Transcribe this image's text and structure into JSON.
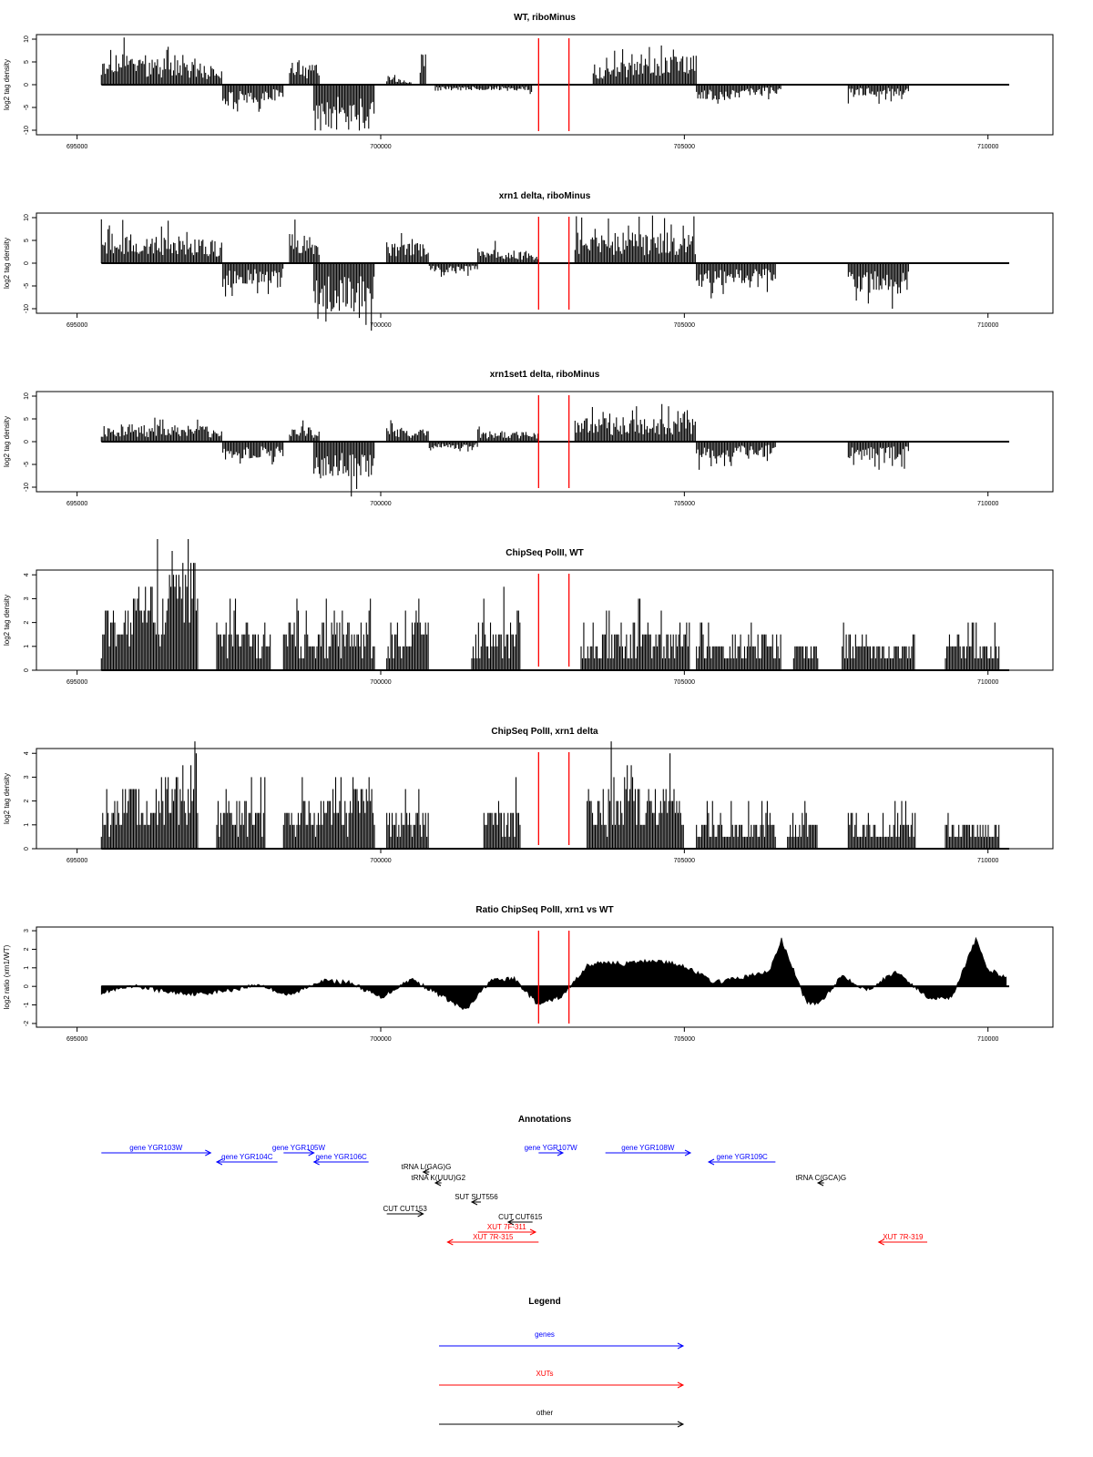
{
  "colors": {
    "bars": "#000000",
    "frame": "#000000",
    "marker": "#ff0000",
    "genes": "#0000ff",
    "xuts": "#ff0000",
    "other": "#000000"
  },
  "chart_data": [
    {
      "type": "bar",
      "title": "WT, riboMinus",
      "ylabel": "log2 tag density",
      "xlim": [
        695000,
        710400
      ],
      "ylim": [
        -11,
        11
      ],
      "yticks": [
        -10,
        -5,
        0,
        5,
        10
      ],
      "xticks": [
        695000,
        700000,
        705000,
        710000
      ],
      "xtick_labels": [
        "695000",
        "700000",
        "705000",
        "710000"
      ],
      "markers_x": [
        702600,
        703100
      ],
      "segments": [
        {
          "x": [
            695400,
            697400
          ],
          "y": [
            6,
            3
          ]
        },
        {
          "x": [
            697400,
            698400
          ],
          "y": [
            -3.5,
            -2.5
          ]
        },
        {
          "x": [
            698500,
            699000
          ],
          "y": [
            5,
            3
          ]
        },
        {
          "x": [
            698900,
            699900
          ],
          "y": [
            -7.5,
            -8
          ]
        },
        {
          "x": [
            700100,
            700500
          ],
          "y": [
            1.5,
            0.5
          ]
        },
        {
          "x": [
            700650,
            700750
          ],
          "y": [
            7,
            7
          ]
        },
        {
          "x": [
            700900,
            702500
          ],
          "y": [
            -1,
            -1
          ]
        },
        {
          "x": [
            703500,
            705200
          ],
          "y": [
            3.5,
            5
          ]
        },
        {
          "x": [
            705200,
            706600
          ],
          "y": [
            -3,
            -1.5
          ]
        },
        {
          "x": [
            707700,
            708700
          ],
          "y": [
            -2,
            -2
          ]
        }
      ]
    },
    {
      "type": "bar",
      "title": "xrn1 delta, riboMinus",
      "ylabel": "log2 tag density",
      "xlim": [
        695000,
        710400
      ],
      "ylim": [
        -11,
        11
      ],
      "yticks": [
        -10,
        -5,
        0,
        5,
        10
      ],
      "xticks": [
        695000,
        700000,
        705000,
        710000
      ],
      "xtick_labels": [
        "695000",
        "700000",
        "705000",
        "710000"
      ],
      "markers_x": [
        702600,
        703100
      ],
      "segments": [
        {
          "x": [
            695400,
            697400
          ],
          "y": [
            5,
            4
          ]
        },
        {
          "x": [
            697400,
            698400
          ],
          "y": [
            -4.5,
            -3
          ]
        },
        {
          "x": [
            698500,
            699000
          ],
          "y": [
            5,
            4
          ]
        },
        {
          "x": [
            698900,
            699900
          ],
          "y": [
            -8,
            -8
          ]
        },
        {
          "x": [
            700100,
            700800
          ],
          "y": [
            4,
            3
          ]
        },
        {
          "x": [
            700800,
            701600
          ],
          "y": [
            -1.5,
            -1.5
          ]
        },
        {
          "x": [
            701600,
            702600
          ],
          "y": [
            2.5,
            2
          ]
        },
        {
          "x": [
            703200,
            705200
          ],
          "y": [
            5,
            5
          ]
        },
        {
          "x": [
            705200,
            706500
          ],
          "y": [
            -4,
            -3
          ]
        },
        {
          "x": [
            707700,
            708700
          ],
          "y": [
            -5,
            -5
          ]
        }
      ]
    },
    {
      "type": "bar",
      "title": "xrn1set1 delta, riboMinus",
      "ylabel": "log2 tag density",
      "xlim": [
        695000,
        710400
      ],
      "ylim": [
        -11,
        11
      ],
      "yticks": [
        -10,
        -5,
        0,
        5,
        10
      ],
      "xticks": [
        695000,
        700000,
        705000,
        710000
      ],
      "xtick_labels": [
        "695000",
        "700000",
        "705000",
        "710000"
      ],
      "markers_x": [
        702600,
        703100
      ],
      "segments": [
        {
          "x": [
            695400,
            697400
          ],
          "y": [
            3,
            2.5
          ]
        },
        {
          "x": [
            697400,
            698400
          ],
          "y": [
            -3,
            -2.5
          ]
        },
        {
          "x": [
            698500,
            699000
          ],
          "y": [
            3,
            2
          ]
        },
        {
          "x": [
            698900,
            699900
          ],
          "y": [
            -6,
            -6
          ]
        },
        {
          "x": [
            700100,
            700800
          ],
          "y": [
            2.5,
            2
          ]
        },
        {
          "x": [
            700800,
            701600
          ],
          "y": [
            -1.5,
            -1
          ]
        },
        {
          "x": [
            701600,
            702600
          ],
          "y": [
            2,
            1.5
          ]
        },
        {
          "x": [
            703200,
            705200
          ],
          "y": [
            4,
            4
          ]
        },
        {
          "x": [
            705200,
            706500
          ],
          "y": [
            -3,
            -2
          ]
        },
        {
          "x": [
            707700,
            708700
          ],
          "y": [
            -3,
            -3
          ]
        }
      ]
    },
    {
      "type": "bar",
      "title": "ChipSeq PolII, WT",
      "ylabel": "log2 tag density",
      "xlim": [
        695000,
        710400
      ],
      "ylim": [
        0,
        4.2
      ],
      "yticks": [
        0,
        1,
        2,
        3,
        4
      ],
      "xticks": [
        695000,
        700000,
        705000,
        710000
      ],
      "xtick_labels": [
        "695000",
        "700000",
        "705000",
        "710000"
      ],
      "markers_x": [
        702600,
        703100
      ],
      "segments": [
        {
          "x": [
            695400,
            697000
          ],
          "y": [
            2,
            3.5
          ]
        },
        {
          "x": [
            697300,
            698200
          ],
          "y": [
            1.5,
            1.5
          ]
        },
        {
          "x": [
            698400,
            699900
          ],
          "y": [
            1.5,
            1.5
          ]
        },
        {
          "x": [
            700100,
            700800
          ],
          "y": [
            1.5,
            1.5
          ]
        },
        {
          "x": [
            701500,
            702300
          ],
          "y": [
            1.2,
            2
          ]
        },
        {
          "x": [
            703300,
            705100
          ],
          "y": [
            1.2,
            1.5
          ]
        },
        {
          "x": [
            705200,
            706600
          ],
          "y": [
            1,
            1
          ]
        },
        {
          "x": [
            706800,
            707200
          ],
          "y": [
            1,
            1
          ]
        },
        {
          "x": [
            707600,
            708800
          ],
          "y": [
            1,
            1
          ]
        },
        {
          "x": [
            709300,
            710200
          ],
          "y": [
            1,
            1
          ]
        }
      ]
    },
    {
      "type": "bar",
      "title": "ChipSeq PolII, xrn1 delta",
      "ylabel": "log2 tag density",
      "xlim": [
        695000,
        710400
      ],
      "ylim": [
        0,
        4.2
      ],
      "yticks": [
        0,
        1,
        2,
        3,
        4
      ],
      "xticks": [
        695000,
        700000,
        705000,
        710000
      ],
      "xtick_labels": [
        "695000",
        "700000",
        "705000",
        "710000"
      ],
      "markers_x": [
        702600,
        703100
      ],
      "segments": [
        {
          "x": [
            695400,
            697000
          ],
          "y": [
            1.5,
            2.8
          ]
        },
        {
          "x": [
            697300,
            698100
          ],
          "y": [
            1.5,
            1.5
          ]
        },
        {
          "x": [
            698400,
            699900
          ],
          "y": [
            1.5,
            2
          ]
        },
        {
          "x": [
            700100,
            700800
          ],
          "y": [
            1.5,
            1.2
          ]
        },
        {
          "x": [
            701700,
            702300
          ],
          "y": [
            1.2,
            1.5
          ]
        },
        {
          "x": [
            703400,
            705000
          ],
          "y": [
            2,
            2.2
          ]
        },
        {
          "x": [
            705200,
            706500
          ],
          "y": [
            1,
            1
          ]
        },
        {
          "x": [
            706700,
            707200
          ],
          "y": [
            1,
            1
          ]
        },
        {
          "x": [
            707700,
            708800
          ],
          "y": [
            1,
            1
          ]
        },
        {
          "x": [
            709300,
            710200
          ],
          "y": [
            0.8,
            0.8
          ]
        }
      ]
    },
    {
      "type": "area",
      "title": "Ratio ChipSeq PolII, xrn1 vs WT",
      "ylabel": "log2 ratio (xrn1/WT)",
      "xlim": [
        695000,
        710400
      ],
      "ylim": [
        -2.2,
        3.2
      ],
      "yticks": [
        -2,
        -1,
        0,
        1,
        2,
        3
      ],
      "xticks": [
        695000,
        700000,
        705000,
        710000
      ],
      "xtick_labels": [
        "695000",
        "700000",
        "705000",
        "710000"
      ],
      "markers_x": [
        702600,
        703100
      ],
      "x": [
        695400,
        696000,
        696500,
        697000,
        697500,
        698000,
        698500,
        699000,
        699500,
        700000,
        700500,
        701000,
        701400,
        701800,
        702200,
        702600,
        703000,
        703400,
        703700,
        704000,
        704500,
        705000,
        705500,
        706000,
        706400,
        706600,
        707000,
        707200,
        707600,
        708000,
        708500,
        709000,
        709400,
        709800,
        710000,
        710300
      ],
      "y": [
        -0.3,
        0.0,
        -0.3,
        -0.4,
        -0.2,
        0.1,
        -0.5,
        0.3,
        0.2,
        -0.6,
        0.4,
        -0.5,
        -1.3,
        0.3,
        0.4,
        -1.0,
        -0.5,
        1.1,
        1.3,
        1.2,
        1.4,
        1.1,
        0.2,
        0.5,
        0.8,
        2.5,
        -0.8,
        -1.0,
        0.6,
        -0.2,
        0.8,
        -0.6,
        -0.6,
        2.5,
        0.9,
        0.5
      ]
    },
    {
      "type": "table",
      "title": "Annotations",
      "xlim": [
        695000,
        710400
      ],
      "items": [
        {
          "label": "gene YGR103W",
          "start": 695400,
          "end": 697200,
          "strand": "+",
          "cls": "genes",
          "row": 0
        },
        {
          "label": "gene YGR104C",
          "start": 697300,
          "end": 698300,
          "strand": "-",
          "cls": "genes",
          "row": 1
        },
        {
          "label": "gene YGR105W",
          "start": 698400,
          "end": 698900,
          "strand": "+",
          "cls": "genes",
          "row": 0
        },
        {
          "label": "gene YGR106C",
          "start": 698900,
          "end": 699800,
          "strand": "-",
          "cls": "genes",
          "row": 1
        },
        {
          "label": "tRNA L(GAG)G",
          "start": 700700,
          "end": 700800,
          "strand": "-",
          "cls": "other",
          "row": 2
        },
        {
          "label": "tRNA K(UUU)G2",
          "start": 700900,
          "end": 701000,
          "strand": "-",
          "cls": "other",
          "row": 3
        },
        {
          "label": "SUT SUT556",
          "start": 701500,
          "end": 701650,
          "strand": "-",
          "cls": "other",
          "row": 5
        },
        {
          "label": "CUT CUT153",
          "start": 700100,
          "end": 700700,
          "strand": "+",
          "cls": "other",
          "row": 6
        },
        {
          "label": "CUT CUT615",
          "start": 702100,
          "end": 702500,
          "strand": "-",
          "cls": "other",
          "row": 7
        },
        {
          "label": "XUT 7F-311",
          "start": 701600,
          "end": 702550,
          "strand": "+",
          "cls": "xuts",
          "row": 8
        },
        {
          "label": "XUT 7R-315",
          "start": 701100,
          "end": 702600,
          "strand": "-",
          "cls": "xuts",
          "row": 9
        },
        {
          "label": "gene YGR107W",
          "start": 702600,
          "end": 703000,
          "strand": "+",
          "cls": "genes",
          "row": 0
        },
        {
          "label": "gene YGR108W",
          "start": 703700,
          "end": 705100,
          "strand": "+",
          "cls": "genes",
          "row": 0
        },
        {
          "label": "gene YGR109C",
          "start": 705400,
          "end": 706500,
          "strand": "-",
          "cls": "genes",
          "row": 1
        },
        {
          "label": "tRNA C(GCA)G",
          "start": 707200,
          "end": 707300,
          "strand": "-",
          "cls": "other",
          "row": 3
        },
        {
          "label": "XUT 7R-319",
          "start": 708200,
          "end": 709000,
          "strand": "-",
          "cls": "xuts",
          "row": 9
        }
      ]
    }
  ],
  "legend": {
    "title": "Legend",
    "items": [
      {
        "label": "genes",
        "cls": "genes"
      },
      {
        "label": "XUTs",
        "cls": "xuts"
      },
      {
        "label": "other",
        "cls": "other"
      }
    ]
  }
}
